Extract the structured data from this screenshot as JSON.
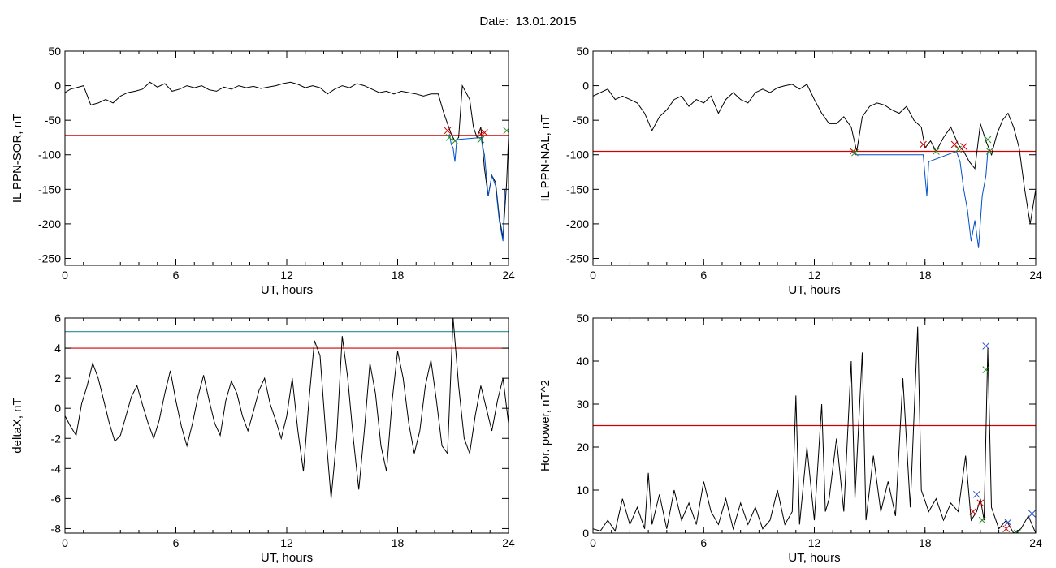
{
  "date_label": "Date:",
  "date_value": "13.01.2015",
  "chart_data": [
    {
      "id": "sor",
      "type": "line",
      "xlabel": "UT, hours",
      "ylabel": "IL PPN-SOR, nT",
      "xlim": [
        0,
        24
      ],
      "ylim": [
        -260,
        50
      ],
      "xticks": [
        0,
        6,
        12,
        18,
        24
      ],
      "yticks": [
        50,
        0,
        -50,
        -100,
        -150,
        -200,
        -250
      ],
      "threshold_lines": [
        {
          "y": -72,
          "color": "#d00000"
        }
      ],
      "series": [
        {
          "color": "#000000",
          "x": [
            0,
            0.3,
            0.6,
            1.0,
            1.4,
            1.8,
            2.2,
            2.6,
            3.0,
            3.4,
            3.8,
            4.2,
            4.6,
            5.0,
            5.4,
            5.8,
            6.2,
            6.6,
            7.0,
            7.4,
            7.8,
            8.2,
            8.6,
            9.0,
            9.4,
            9.8,
            10.2,
            10.6,
            11.0,
            11.4,
            11.8,
            12.2,
            12.6,
            13.0,
            13.4,
            13.8,
            14.2,
            14.6,
            15.0,
            15.4,
            15.8,
            16.2,
            16.6,
            17.0,
            17.4,
            17.8,
            18.2,
            18.6,
            19.0,
            19.4,
            19.8,
            20.2,
            20.5,
            20.7,
            20.9,
            21.1,
            21.3,
            21.5,
            21.7,
            21.9,
            22.1,
            22.3,
            22.5,
            22.7,
            22.9,
            23.1,
            23.3,
            23.5,
            23.7,
            23.9,
            24.0
          ],
          "y": [
            -10,
            -5,
            -3,
            0,
            -28,
            -25,
            -20,
            -25,
            -15,
            -10,
            -8,
            -5,
            5,
            -2,
            3,
            -8,
            -5,
            0,
            -3,
            0,
            -6,
            -8,
            -2,
            -5,
            0,
            -3,
            -1,
            -4,
            -2,
            0,
            3,
            5,
            2,
            -3,
            0,
            -3,
            -12,
            -5,
            0,
            -3,
            3,
            0,
            -5,
            -10,
            -8,
            -12,
            -8,
            -10,
            -12,
            -15,
            -12,
            -12,
            -40,
            -55,
            -70,
            -80,
            -75,
            0,
            -10,
            -20,
            -60,
            -75,
            -60,
            -120,
            -160,
            -130,
            -140,
            -190,
            -220,
            -140,
            -75
          ]
        },
        {
          "color": "#0050c8",
          "x": [
            20.8,
            20.9,
            21.0,
            21.1,
            21.2,
            22.5,
            22.7,
            22.9,
            23.1,
            23.3,
            23.5,
            23.7,
            23.8
          ],
          "y": [
            -70,
            -85,
            -90,
            -110,
            -78,
            -75,
            -100,
            -160,
            -130,
            -145,
            -195,
            -225,
            -150
          ]
        }
      ],
      "markers": [
        {
          "x": 20.7,
          "y": -65,
          "color": "#d00000"
        },
        {
          "x": 20.8,
          "y": -75,
          "color": "#2a8f2a"
        },
        {
          "x": 21.1,
          "y": -80,
          "color": "#2a8f2a"
        },
        {
          "x": 22.5,
          "y": -70,
          "color": "#d00000"
        },
        {
          "x": 22.7,
          "y": -68,
          "color": "#d00000"
        },
        {
          "x": 22.5,
          "y": -78,
          "color": "#2a8f2a"
        },
        {
          "x": 23.9,
          "y": -65,
          "color": "#2a8f2a"
        }
      ]
    },
    {
      "id": "nal",
      "type": "line",
      "xlabel": "UT, hours",
      "ylabel": "IL PPN-NAL, nT",
      "xlim": [
        0,
        24
      ],
      "ylim": [
        -260,
        50
      ],
      "xticks": [
        0,
        6,
        12,
        18,
        24
      ],
      "yticks": [
        50,
        0,
        -50,
        -100,
        -150,
        -200,
        -250
      ],
      "threshold_lines": [
        {
          "y": -95,
          "color": "#d00000"
        }
      ],
      "series": [
        {
          "color": "#000000",
          "x": [
            0,
            0.4,
            0.8,
            1.2,
            1.6,
            2.0,
            2.4,
            2.8,
            3.2,
            3.6,
            4.0,
            4.4,
            4.8,
            5.2,
            5.6,
            6.0,
            6.4,
            6.8,
            7.2,
            7.6,
            8.0,
            8.4,
            8.8,
            9.2,
            9.6,
            10.0,
            10.4,
            10.8,
            11.2,
            11.6,
            12.0,
            12.4,
            12.8,
            13.2,
            13.6,
            14.0,
            14.3,
            14.6,
            15.0,
            15.4,
            15.8,
            16.2,
            16.6,
            17.0,
            17.4,
            17.8,
            18.0,
            18.3,
            18.6,
            19.0,
            19.4,
            19.8,
            20.1,
            20.4,
            20.7,
            21.0,
            21.3,
            21.6,
            21.9,
            22.2,
            22.5,
            22.8,
            23.1,
            23.4,
            23.7,
            24.0
          ],
          "y": [
            -15,
            -10,
            -5,
            -20,
            -15,
            -20,
            -25,
            -40,
            -65,
            -45,
            -35,
            -20,
            -15,
            -30,
            -20,
            -25,
            -15,
            -40,
            -20,
            -10,
            -20,
            -25,
            -10,
            -5,
            -10,
            -3,
            0,
            2,
            -5,
            2,
            -20,
            -40,
            -55,
            -55,
            -45,
            -60,
            -95,
            -45,
            -30,
            -25,
            -28,
            -35,
            -40,
            -30,
            -50,
            -60,
            -90,
            -80,
            -95,
            -75,
            -60,
            -85,
            -95,
            -110,
            -120,
            -55,
            -80,
            -100,
            -70,
            -50,
            -40,
            -60,
            -90,
            -150,
            -200,
            -150
          ]
        },
        {
          "color": "#0050c8",
          "x": [
            14.1,
            14.2,
            17.9,
            18.1,
            18.2,
            19.7,
            19.9,
            20.1,
            20.3,
            20.5,
            20.7,
            20.9,
            21.1,
            21.3,
            21.4
          ],
          "y": [
            -95,
            -100,
            -100,
            -160,
            -110,
            -95,
            -110,
            -150,
            -180,
            -225,
            -195,
            -235,
            -160,
            -130,
            -95
          ]
        }
      ],
      "markers": [
        {
          "x": 14.1,
          "y": -95,
          "color": "#d00000"
        },
        {
          "x": 14.2,
          "y": -97,
          "color": "#2a8f2a"
        },
        {
          "x": 17.9,
          "y": -85,
          "color": "#d00000"
        },
        {
          "x": 18.6,
          "y": -95,
          "color": "#2a8f2a"
        },
        {
          "x": 19.6,
          "y": -85,
          "color": "#d00000"
        },
        {
          "x": 19.8,
          "y": -92,
          "color": "#2a8f2a"
        },
        {
          "x": 20.1,
          "y": -88,
          "color": "#d00000"
        },
        {
          "x": 21.4,
          "y": -78,
          "color": "#2a8f2a"
        },
        {
          "x": 21.5,
          "y": -95,
          "color": "#2a8f2a"
        }
      ]
    },
    {
      "id": "deltax",
      "type": "line",
      "xlabel": "UT, hours",
      "ylabel": "deltaX, nT",
      "xlim": [
        0,
        24
      ],
      "ylim": [
        -8.3,
        6
      ],
      "xticks": [
        0,
        6,
        12,
        18,
        24
      ],
      "yticks": [
        6,
        4,
        2,
        0,
        -2,
        -4,
        -6,
        -8
      ],
      "threshold_lines": [
        {
          "y": 5.1,
          "color": "#2a8f8f"
        },
        {
          "y": 4.0,
          "color": "#d00000"
        }
      ],
      "series": [
        {
          "color": "#000000",
          "x": [
            0,
            0.3,
            0.6,
            0.9,
            1.2,
            1.5,
            1.8,
            2.1,
            2.4,
            2.7,
            3.0,
            3.3,
            3.6,
            3.9,
            4.2,
            4.5,
            4.8,
            5.1,
            5.4,
            5.7,
            6.0,
            6.3,
            6.6,
            6.9,
            7.2,
            7.5,
            7.8,
            8.1,
            8.4,
            8.7,
            9.0,
            9.3,
            9.6,
            9.9,
            10.2,
            10.5,
            10.8,
            11.1,
            11.4,
            11.7,
            12.0,
            12.3,
            12.6,
            12.9,
            13.2,
            13.5,
            13.8,
            14.1,
            14.4,
            14.7,
            15.0,
            15.3,
            15.6,
            15.9,
            16.2,
            16.5,
            16.8,
            17.1,
            17.4,
            17.7,
            18.0,
            18.3,
            18.6,
            18.9,
            19.2,
            19.5,
            19.8,
            20.1,
            20.4,
            20.7,
            21.0,
            21.3,
            21.6,
            21.9,
            22.2,
            22.5,
            22.8,
            23.1,
            23.4,
            23.7,
            24.0
          ],
          "y": [
            -0.5,
            -1.2,
            -1.8,
            0.3,
            1.5,
            3.0,
            2.0,
            0.5,
            -1.0,
            -2.2,
            -1.8,
            -0.5,
            0.8,
            1.5,
            0.2,
            -1.0,
            -2.0,
            -0.8,
            1.0,
            2.5,
            0.5,
            -1.2,
            -2.5,
            -1.0,
            0.8,
            2.2,
            0.5,
            -1.0,
            -1.8,
            0.5,
            1.8,
            1.0,
            -0.5,
            -1.5,
            -0.2,
            1.2,
            2.0,
            0.3,
            -0.8,
            -2.0,
            -0.5,
            2.0,
            -1.5,
            -4.2,
            0.5,
            4.5,
            3.5,
            -1.5,
            -6.0,
            -2.0,
            4.8,
            2.0,
            -2.0,
            -5.4,
            -1.5,
            3.0,
            1.0,
            -2.5,
            -4.2,
            0.5,
            3.8,
            2.0,
            -1.0,
            -3.0,
            -1.5,
            1.5,
            3.2,
            0.5,
            -2.5,
            -3.0,
            6.0,
            1.5,
            -2.0,
            -3.0,
            -0.5,
            1.5,
            0.0,
            -1.5,
            0.5,
            2.0,
            -1.0
          ]
        }
      ],
      "markers": []
    },
    {
      "id": "power",
      "type": "line",
      "xlabel": "UT, hours",
      "ylabel": "Hor. power, nT^2",
      "xlim": [
        0,
        24
      ],
      "ylim": [
        0,
        50
      ],
      "xticks": [
        0,
        6,
        12,
        18,
        24
      ],
      "yticks": [
        50,
        40,
        30,
        20,
        10,
        0
      ],
      "threshold_lines": [
        {
          "y": 25,
          "color": "#d00000"
        }
      ],
      "series": [
        {
          "color": "#000000",
          "x": [
            0,
            0.4,
            0.8,
            1.2,
            1.6,
            2.0,
            2.4,
            2.8,
            3.0,
            3.2,
            3.6,
            4.0,
            4.4,
            4.8,
            5.2,
            5.6,
            6.0,
            6.4,
            6.8,
            7.2,
            7.6,
            8.0,
            8.4,
            8.8,
            9.2,
            9.6,
            10.0,
            10.4,
            10.8,
            11.0,
            11.2,
            11.6,
            12.0,
            12.4,
            12.6,
            12.8,
            13.2,
            13.6,
            14.0,
            14.2,
            14.6,
            14.8,
            15.2,
            15.6,
            16.0,
            16.4,
            16.8,
            17.2,
            17.6,
            17.8,
            18.2,
            18.6,
            19.0,
            19.4,
            19.8,
            20.2,
            20.5,
            20.8,
            21.0,
            21.2,
            21.4,
            21.6,
            22.0,
            22.4,
            22.8,
            23.2,
            23.6,
            24.0
          ],
          "y": [
            1,
            0.5,
            3,
            0.5,
            8,
            2,
            6,
            1,
            14,
            2,
            9,
            1,
            10,
            3,
            7,
            2,
            12,
            5,
            2,
            8,
            1,
            7,
            2,
            6,
            1,
            3,
            10,
            2,
            5,
            32,
            2,
            20,
            3,
            30,
            5,
            8,
            22,
            5,
            40,
            8,
            42,
            3,
            18,
            5,
            12,
            4,
            36,
            6,
            48,
            10,
            5,
            8,
            3,
            7,
            5,
            18,
            3,
            5,
            8,
            3,
            43,
            6,
            1,
            3,
            0,
            1,
            4,
            0
          ]
        }
      ],
      "markers": [
        {
          "x": 20.6,
          "y": 5,
          "color": "#d00000"
        },
        {
          "x": 20.8,
          "y": 9,
          "color": "#2a4fc8"
        },
        {
          "x": 21.0,
          "y": 7,
          "color": "#d00000"
        },
        {
          "x": 21.1,
          "y": 3,
          "color": "#2a8f2a"
        },
        {
          "x": 21.3,
          "y": 43.5,
          "color": "#2a4fc8"
        },
        {
          "x": 21.3,
          "y": 38,
          "color": "#2a8f2a"
        },
        {
          "x": 22.5,
          "y": 2.5,
          "color": "#2a4fc8"
        },
        {
          "x": 22.4,
          "y": 1,
          "color": "#d00000"
        },
        {
          "x": 23.0,
          "y": 0,
          "color": "#2a8f2a"
        },
        {
          "x": 23.8,
          "y": 4.5,
          "color": "#2a4fc8"
        }
      ]
    }
  ]
}
